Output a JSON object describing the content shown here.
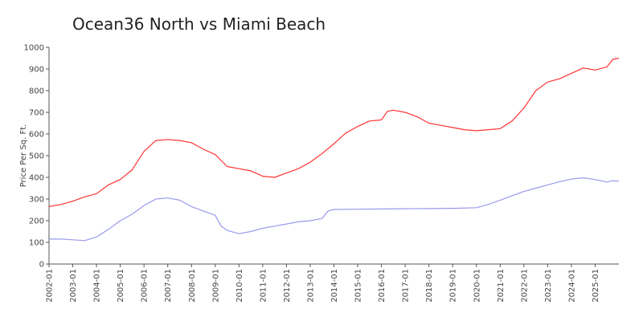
{
  "chart_data": {
    "type": "line",
    "title": "Ocean36 North vs Miami Beach",
    "xlabel": "",
    "ylabel": "Price Per Sq. Ft.",
    "ylim": [
      0,
      1000
    ],
    "xlim": [
      "2002-01",
      "2026-01"
    ],
    "y_ticks": [
      "0",
      "100",
      "200",
      "300",
      "400",
      "500",
      "600",
      "700",
      "800",
      "900",
      "1000"
    ],
    "x_ticks": [
      "2002-01",
      "2003-01",
      "2004-01",
      "2005-01",
      "2006-01",
      "2007-01",
      "2008-01",
      "2009-01",
      "2010-01",
      "2011-01",
      "2012-01",
      "2013-01",
      "2014-01",
      "2015-01",
      "2016-01",
      "2017-01",
      "2018-01",
      "2019-01",
      "2020-01",
      "2021-01",
      "2022-01",
      "2023-01",
      "2024-01",
      "2025-01"
    ],
    "grid": false,
    "series": [
      {
        "color": "#ff3333",
        "points": [
          [
            "2002-01",
            265
          ],
          [
            "2002-07",
            275
          ],
          [
            "2003-01",
            290
          ],
          [
            "2003-07",
            310
          ],
          [
            "2004-01",
            325
          ],
          [
            "2004-07",
            365
          ],
          [
            "2005-01",
            390
          ],
          [
            "2005-07",
            435
          ],
          [
            "2006-01",
            520
          ],
          [
            "2006-07",
            570
          ],
          [
            "2007-01",
            575
          ],
          [
            "2007-07",
            570
          ],
          [
            "2008-01",
            560
          ],
          [
            "2008-07",
            530
          ],
          [
            "2009-01",
            505
          ],
          [
            "2009-07",
            450
          ],
          [
            "2010-01",
            440
          ],
          [
            "2010-07",
            430
          ],
          [
            "2011-01",
            405
          ],
          [
            "2011-07",
            400
          ],
          [
            "2012-01",
            420
          ],
          [
            "2012-07",
            440
          ],
          [
            "2013-01",
            470
          ],
          [
            "2013-07",
            510
          ],
          [
            "2014-01",
            555
          ],
          [
            "2014-07",
            605
          ],
          [
            "2015-01",
            635
          ],
          [
            "2015-07",
            660
          ],
          [
            "2016-01",
            665
          ],
          [
            "2016-04",
            705
          ],
          [
            "2016-07",
            710
          ],
          [
            "2017-01",
            700
          ],
          [
            "2017-07",
            680
          ],
          [
            "2018-01",
            650
          ],
          [
            "2018-07",
            640
          ],
          [
            "2019-01",
            630
          ],
          [
            "2019-07",
            620
          ],
          [
            "2020-01",
            615
          ],
          [
            "2020-07",
            620
          ],
          [
            "2021-01",
            625
          ],
          [
            "2021-07",
            660
          ],
          [
            "2022-01",
            720
          ],
          [
            "2022-07",
            800
          ],
          [
            "2023-01",
            840
          ],
          [
            "2023-07",
            855
          ],
          [
            "2024-01",
            880
          ],
          [
            "2024-07",
            905
          ],
          [
            "2025-01",
            895
          ],
          [
            "2025-07",
            910
          ],
          [
            "2025-10",
            945
          ],
          [
            "2026-01",
            950
          ]
        ]
      },
      {
        "color": "#9999ee",
        "points": [
          [
            "2002-01",
            115
          ],
          [
            "2002-07",
            115
          ],
          [
            "2003-01",
            112
          ],
          [
            "2003-07",
            108
          ],
          [
            "2004-01",
            125
          ],
          [
            "2004-07",
            160
          ],
          [
            "2005-01",
            200
          ],
          [
            "2005-07",
            230
          ],
          [
            "2006-01",
            270
          ],
          [
            "2006-07",
            300
          ],
          [
            "2007-01",
            305
          ],
          [
            "2007-07",
            295
          ],
          [
            "2008-01",
            265
          ],
          [
            "2008-07",
            245
          ],
          [
            "2009-01",
            225
          ],
          [
            "2009-04",
            175
          ],
          [
            "2009-07",
            155
          ],
          [
            "2010-01",
            140
          ],
          [
            "2010-07",
            150
          ],
          [
            "2011-01",
            165
          ],
          [
            "2011-07",
            175
          ],
          [
            "2012-01",
            185
          ],
          [
            "2012-07",
            195
          ],
          [
            "2013-01",
            200
          ],
          [
            "2013-07",
            210
          ],
          [
            "2013-10",
            245
          ],
          [
            "2014-01",
            252
          ],
          [
            "2015-01",
            253
          ],
          [
            "2016-01",
            254
          ],
          [
            "2017-01",
            255
          ],
          [
            "2018-01",
            256
          ],
          [
            "2019-01",
            257
          ],
          [
            "2020-01",
            260
          ],
          [
            "2020-07",
            275
          ],
          [
            "2021-01",
            295
          ],
          [
            "2021-07",
            315
          ],
          [
            "2022-01",
            335
          ],
          [
            "2022-07",
            350
          ],
          [
            "2023-01",
            365
          ],
          [
            "2023-07",
            380
          ],
          [
            "2024-01",
            392
          ],
          [
            "2024-07",
            398
          ],
          [
            "2025-01",
            390
          ],
          [
            "2025-07",
            378
          ],
          [
            "2025-10",
            385
          ],
          [
            "2026-01",
            382
          ]
        ]
      }
    ]
  }
}
